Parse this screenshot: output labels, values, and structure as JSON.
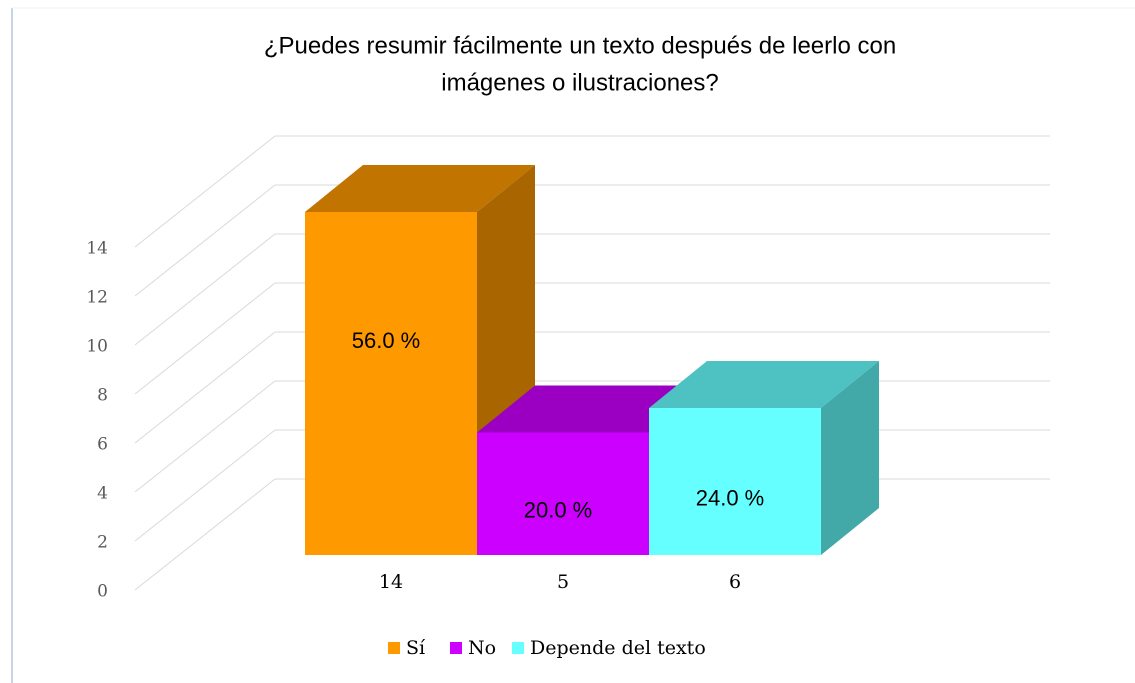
{
  "chart_data": {
    "type": "bar3d",
    "title": [
      "¿Puedes resumir fácilmente un texto después de leerlo con",
      "imágenes o ilustraciones?"
    ],
    "categories": [
      "14",
      "5",
      "6"
    ],
    "series": [
      {
        "name": "Sí",
        "color": "#ff9900",
        "values": [
          14,
          null,
          null
        ]
      },
      {
        "name": "No",
        "color": "#cc00ff",
        "values": [
          null,
          5,
          null
        ]
      },
      {
        "name": "Depende del texto",
        "color": "#66ffff",
        "values": [
          null,
          null,
          6
        ]
      }
    ],
    "percent_labels": [
      {
        "value": 56.0,
        "label": "56.0 %"
      },
      {
        "value": 20.0,
        "label": "20.0 %"
      },
      {
        "value": 24.0,
        "label": "24.0 %"
      }
    ],
    "ylim": [
      0,
      14
    ],
    "yticks": [
      0,
      2,
      4,
      6,
      8,
      10,
      12,
      14
    ],
    "grid": true,
    "legend": "bottom"
  }
}
